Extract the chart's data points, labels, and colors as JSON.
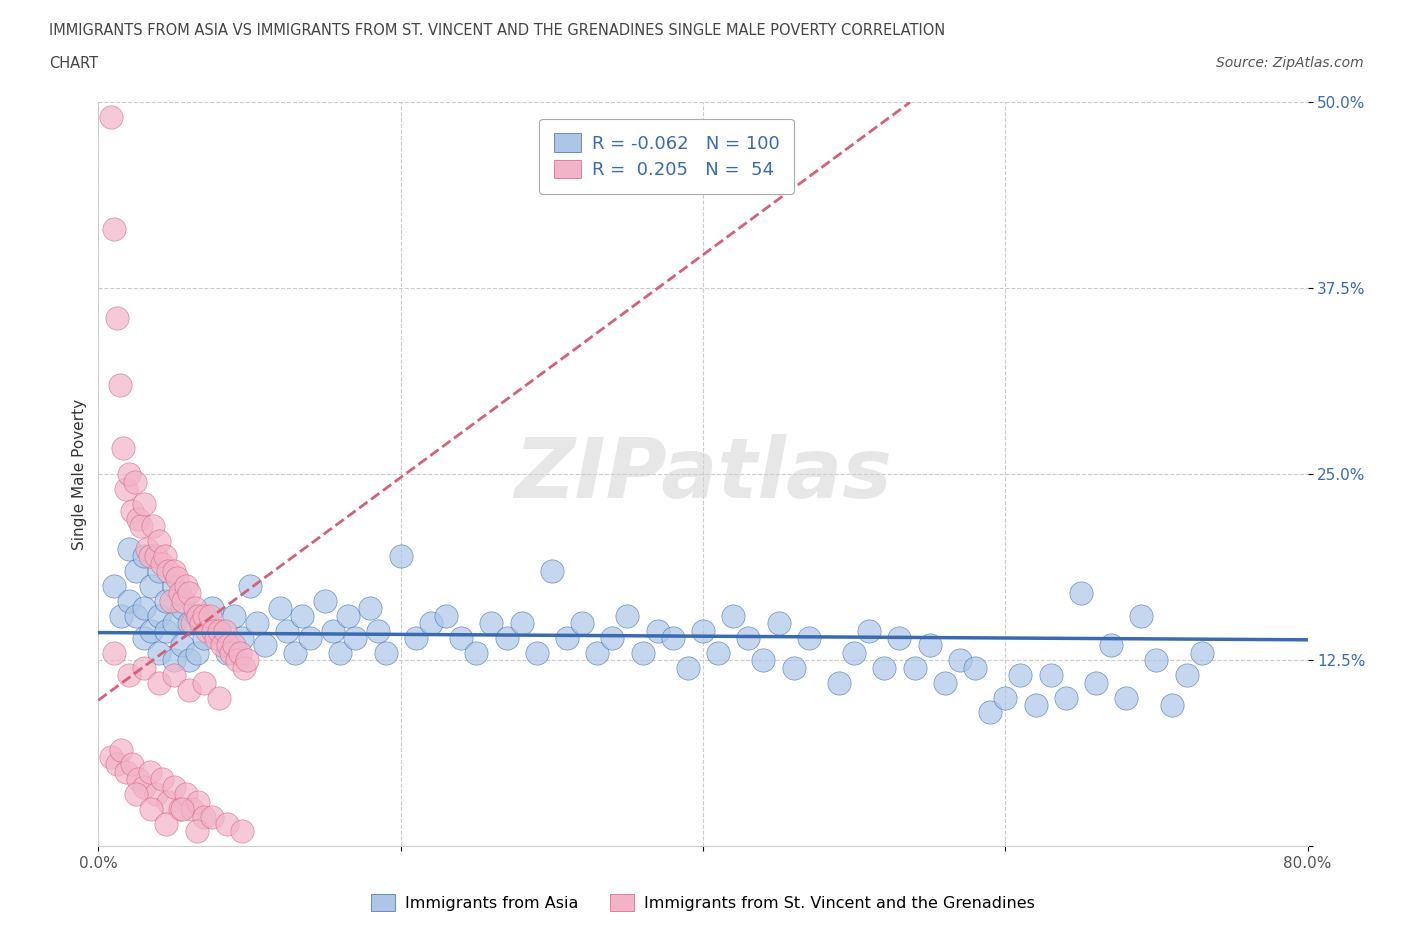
{
  "title_line1": "IMMIGRANTS FROM ASIA VS IMMIGRANTS FROM ST. VINCENT AND THE GRENADINES SINGLE MALE POVERTY CORRELATION",
  "title_line2": "CHART",
  "source": "Source: ZipAtlas.com",
  "ylabel": "Single Male Poverty",
  "xlim": [
    0.0,
    0.8
  ],
  "ylim": [
    0.0,
    0.5
  ],
  "xticks": [
    0.0,
    0.2,
    0.4,
    0.6,
    0.8
  ],
  "xticklabels": [
    "0.0%",
    "",
    "",
    "",
    "80.0%"
  ],
  "ytick_positions": [
    0.0,
    0.125,
    0.25,
    0.375,
    0.5
  ],
  "ytick_labels_right": [
    "",
    "12.5%",
    "25.0%",
    "37.5%",
    "50.0%"
  ],
  "grid_color": "#cccccc",
  "background_color": "#ffffff",
  "watermark": "ZIPatlas",
  "blue_color": "#adc6e8",
  "pink_color": "#f2b3c8",
  "blue_line_color": "#3a6ab0",
  "pink_line_color": "#d4607a",
  "R_blue": -0.062,
  "N_blue": 100,
  "R_pink": 0.205,
  "N_pink": 54,
  "legend_label_blue": "Immigrants from Asia",
  "legend_label_pink": "Immigrants from St. Vincent and the Grenadines",
  "blue_scatter_x": [
    0.01,
    0.015,
    0.02,
    0.02,
    0.025,
    0.025,
    0.03,
    0.03,
    0.03,
    0.035,
    0.035,
    0.04,
    0.04,
    0.04,
    0.045,
    0.045,
    0.05,
    0.05,
    0.05,
    0.055,
    0.055,
    0.06,
    0.06,
    0.065,
    0.065,
    0.07,
    0.075,
    0.08,
    0.085,
    0.09,
    0.095,
    0.1,
    0.105,
    0.11,
    0.12,
    0.125,
    0.13,
    0.135,
    0.14,
    0.15,
    0.155,
    0.16,
    0.165,
    0.17,
    0.18,
    0.185,
    0.19,
    0.2,
    0.21,
    0.22,
    0.23,
    0.24,
    0.25,
    0.26,
    0.27,
    0.28,
    0.29,
    0.3,
    0.31,
    0.32,
    0.33,
    0.34,
    0.35,
    0.36,
    0.37,
    0.38,
    0.39,
    0.4,
    0.41,
    0.42,
    0.43,
    0.44,
    0.45,
    0.46,
    0.47,
    0.49,
    0.5,
    0.51,
    0.52,
    0.53,
    0.54,
    0.55,
    0.56,
    0.57,
    0.58,
    0.59,
    0.6,
    0.61,
    0.62,
    0.63,
    0.64,
    0.65,
    0.66,
    0.67,
    0.68,
    0.69,
    0.7,
    0.71,
    0.72,
    0.73
  ],
  "blue_scatter_y": [
    0.175,
    0.155,
    0.165,
    0.2,
    0.155,
    0.185,
    0.14,
    0.16,
    0.195,
    0.145,
    0.175,
    0.13,
    0.155,
    0.185,
    0.145,
    0.165,
    0.125,
    0.15,
    0.175,
    0.135,
    0.16,
    0.125,
    0.15,
    0.13,
    0.155,
    0.14,
    0.16,
    0.145,
    0.13,
    0.155,
    0.14,
    0.175,
    0.15,
    0.135,
    0.16,
    0.145,
    0.13,
    0.155,
    0.14,
    0.165,
    0.145,
    0.13,
    0.155,
    0.14,
    0.16,
    0.145,
    0.13,
    0.195,
    0.14,
    0.15,
    0.155,
    0.14,
    0.13,
    0.15,
    0.14,
    0.15,
    0.13,
    0.185,
    0.14,
    0.15,
    0.13,
    0.14,
    0.155,
    0.13,
    0.145,
    0.14,
    0.12,
    0.145,
    0.13,
    0.155,
    0.14,
    0.125,
    0.15,
    0.12,
    0.14,
    0.11,
    0.13,
    0.145,
    0.12,
    0.14,
    0.12,
    0.135,
    0.11,
    0.125,
    0.12,
    0.09,
    0.1,
    0.115,
    0.095,
    0.115,
    0.1,
    0.17,
    0.11,
    0.135,
    0.1,
    0.155,
    0.125,
    0.095,
    0.115,
    0.13
  ],
  "pink_scatter_x": [
    0.008,
    0.01,
    0.012,
    0.014,
    0.016,
    0.018,
    0.02,
    0.022,
    0.024,
    0.026,
    0.028,
    0.03,
    0.032,
    0.034,
    0.036,
    0.038,
    0.04,
    0.042,
    0.044,
    0.046,
    0.048,
    0.05,
    0.052,
    0.054,
    0.056,
    0.058,
    0.06,
    0.062,
    0.064,
    0.066,
    0.068,
    0.07,
    0.072,
    0.074,
    0.076,
    0.078,
    0.08,
    0.082,
    0.084,
    0.086,
    0.088,
    0.09,
    0.092,
    0.094,
    0.096,
    0.098,
    0.01,
    0.02,
    0.03,
    0.04,
    0.05,
    0.06,
    0.07,
    0.08
  ],
  "pink_scatter_y": [
    0.49,
    0.415,
    0.355,
    0.31,
    0.268,
    0.24,
    0.25,
    0.225,
    0.245,
    0.22,
    0.215,
    0.23,
    0.2,
    0.195,
    0.215,
    0.195,
    0.205,
    0.19,
    0.195,
    0.185,
    0.165,
    0.185,
    0.18,
    0.17,
    0.165,
    0.175,
    0.17,
    0.15,
    0.16,
    0.155,
    0.15,
    0.155,
    0.145,
    0.155,
    0.145,
    0.14,
    0.145,
    0.135,
    0.145,
    0.135,
    0.13,
    0.135,
    0.125,
    0.13,
    0.12,
    0.125,
    0.13,
    0.115,
    0.12,
    0.11,
    0.115,
    0.105,
    0.11,
    0.1
  ],
  "pink_scatter_y_low": [
    0.06,
    0.055,
    0.065,
    0.05,
    0.055,
    0.045,
    0.04,
    0.05,
    0.035,
    0.045,
    0.03,
    0.04,
    0.025,
    0.035,
    0.025,
    0.03,
    0.02,
    0.035,
    0.025,
    0.015,
    0.025,
    0.01,
    0.02,
    0.015,
    0.01
  ],
  "pink_scatter_x_low": [
    0.008,
    0.012,
    0.015,
    0.018,
    0.022,
    0.026,
    0.03,
    0.034,
    0.038,
    0.042,
    0.046,
    0.05,
    0.054,
    0.058,
    0.062,
    0.066,
    0.07,
    0.025,
    0.035,
    0.045,
    0.055,
    0.065,
    0.075,
    0.085,
    0.095
  ]
}
